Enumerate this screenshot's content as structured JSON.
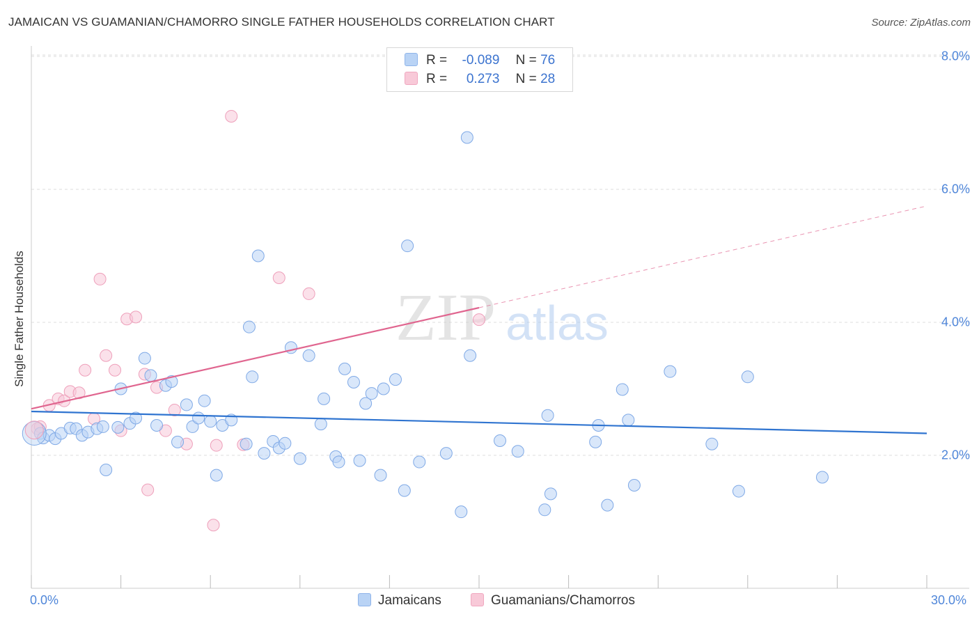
{
  "title": "JAMAICAN VS GUAMANIAN/CHAMORRO SINGLE FATHER HOUSEHOLDS CORRELATION CHART",
  "source": "Source: ZipAtlas.com",
  "watermark": {
    "zip": "ZIP",
    "atlas": "atlas"
  },
  "legend": {
    "rows": [
      {
        "r_label": "R =",
        "r_value": "-0.089",
        "n_label": "N =",
        "n_value": "76"
      },
      {
        "r_label": "R =",
        "r_value": "0.273",
        "n_label": "N =",
        "n_value": "28"
      }
    ]
  },
  "bottom_legend": [
    "Jamaicans",
    "Guamanians/Chamorros"
  ],
  "colors": {
    "jamaicans_fill": "#b9d3f5",
    "jamaicans_stroke": "#7fa9e6",
    "jamaicans_line": "#2f74d0",
    "guam_fill": "#f8c9d8",
    "guam_stroke": "#ee9fba",
    "guam_line": "#e0658f",
    "tick_text": "#4f86d9",
    "grid": "#dddddd"
  },
  "chart_data": {
    "type": "scatter",
    "title": "JAMAICAN VS GUAMANIAN/CHAMORRO SINGLE FATHER HOUSEHOLDS CORRELATION CHART",
    "xlabel": "",
    "ylabel": "Single Father Households",
    "xlim": [
      0,
      30
    ],
    "ylim": [
      0,
      8.3
    ],
    "x_tick_labels": [
      "0.0%",
      "30.0%"
    ],
    "y_ticks": [
      2,
      4,
      6,
      8
    ],
    "y_tick_labels": [
      "2.0%",
      "4.0%",
      "6.0%",
      "8.0%"
    ],
    "grid": true,
    "legend_placement": "top-center",
    "series": [
      {
        "name": "Jamaicans",
        "r": -0.089,
        "n": 76,
        "trend": {
          "x0": 0,
          "y0": 2.66,
          "x1": 30,
          "y1": 2.33
        },
        "points": [
          [
            0.3,
            2.33
          ],
          [
            0.4,
            2.26
          ],
          [
            0.6,
            2.3
          ],
          [
            0.8,
            2.25
          ],
          [
            1.0,
            2.33
          ],
          [
            1.3,
            2.41
          ],
          [
            1.5,
            2.4
          ],
          [
            1.7,
            2.3
          ],
          [
            1.9,
            2.35
          ],
          [
            2.2,
            2.4
          ],
          [
            2.4,
            2.43
          ],
          [
            2.5,
            1.78
          ],
          [
            2.9,
            2.42
          ],
          [
            3.0,
            3.0
          ],
          [
            3.3,
            2.48
          ],
          [
            3.5,
            2.56
          ],
          [
            3.8,
            3.46
          ],
          [
            4.0,
            3.2
          ],
          [
            4.2,
            2.45
          ],
          [
            4.5,
            3.05
          ],
          [
            4.7,
            3.11
          ],
          [
            4.9,
            2.2
          ],
          [
            5.2,
            2.76
          ],
          [
            5.4,
            2.43
          ],
          [
            5.6,
            2.56
          ],
          [
            5.8,
            2.82
          ],
          [
            6.0,
            2.51
          ],
          [
            6.2,
            1.7
          ],
          [
            6.4,
            2.45
          ],
          [
            6.7,
            2.53
          ],
          [
            7.2,
            2.17
          ],
          [
            7.3,
            3.93
          ],
          [
            7.4,
            3.18
          ],
          [
            7.6,
            5.0
          ],
          [
            7.8,
            2.03
          ],
          [
            8.1,
            2.21
          ],
          [
            8.3,
            2.11
          ],
          [
            8.5,
            2.18
          ],
          [
            8.7,
            3.62
          ],
          [
            9.0,
            1.95
          ],
          [
            9.3,
            3.5
          ],
          [
            9.7,
            2.47
          ],
          [
            9.8,
            2.85
          ],
          [
            10.2,
            1.98
          ],
          [
            10.3,
            1.9
          ],
          [
            10.5,
            3.3
          ],
          [
            10.8,
            3.1
          ],
          [
            11.0,
            1.92
          ],
          [
            11.2,
            2.78
          ],
          [
            11.4,
            2.93
          ],
          [
            11.7,
            1.7
          ],
          [
            11.8,
            3.0
          ],
          [
            12.2,
            3.14
          ],
          [
            12.5,
            1.47
          ],
          [
            12.6,
            5.15
          ],
          [
            13.0,
            1.9
          ],
          [
            13.9,
            2.03
          ],
          [
            14.4,
            1.15
          ],
          [
            14.6,
            6.78
          ],
          [
            14.7,
            3.5
          ],
          [
            15.7,
            2.22
          ],
          [
            16.3,
            2.06
          ],
          [
            17.2,
            1.18
          ],
          [
            17.3,
            2.6
          ],
          [
            17.4,
            1.42
          ],
          [
            18.9,
            2.2
          ],
          [
            19.0,
            2.45
          ],
          [
            19.3,
            1.25
          ],
          [
            19.8,
            2.99
          ],
          [
            20.0,
            2.53
          ],
          [
            20.2,
            1.55
          ],
          [
            21.4,
            3.26
          ],
          [
            22.8,
            2.17
          ],
          [
            23.7,
            1.46
          ],
          [
            24.0,
            3.18
          ],
          [
            26.5,
            1.67
          ]
        ]
      },
      {
        "name": "Guamanians/Chamorros",
        "r": 0.273,
        "n": 28,
        "trend": {
          "x0": 0,
          "y0": 2.7,
          "x1": 15,
          "y1": 4.22
        },
        "trend_ext": {
          "x0": 15,
          "y0": 4.22,
          "x1": 30,
          "y1": 5.75
        },
        "points": [
          [
            0.2,
            2.4
          ],
          [
            0.3,
            2.43
          ],
          [
            0.6,
            2.75
          ],
          [
            0.9,
            2.85
          ],
          [
            1.1,
            2.82
          ],
          [
            1.3,
            2.96
          ],
          [
            1.6,
            2.94
          ],
          [
            1.8,
            3.28
          ],
          [
            2.1,
            2.55
          ],
          [
            2.3,
            4.65
          ],
          [
            2.5,
            3.5
          ],
          [
            2.8,
            3.28
          ],
          [
            3.0,
            2.37
          ],
          [
            3.2,
            4.05
          ],
          [
            3.5,
            4.08
          ],
          [
            3.8,
            3.22
          ],
          [
            3.9,
            1.48
          ],
          [
            4.2,
            3.02
          ],
          [
            4.5,
            2.37
          ],
          [
            4.8,
            2.68
          ],
          [
            5.2,
            2.17
          ],
          [
            6.2,
            2.15
          ],
          [
            6.1,
            0.95
          ],
          [
            6.7,
            7.1
          ],
          [
            7.1,
            2.16
          ],
          [
            8.3,
            4.67
          ],
          [
            9.3,
            4.43
          ],
          [
            15.0,
            4.04
          ]
        ]
      }
    ]
  }
}
